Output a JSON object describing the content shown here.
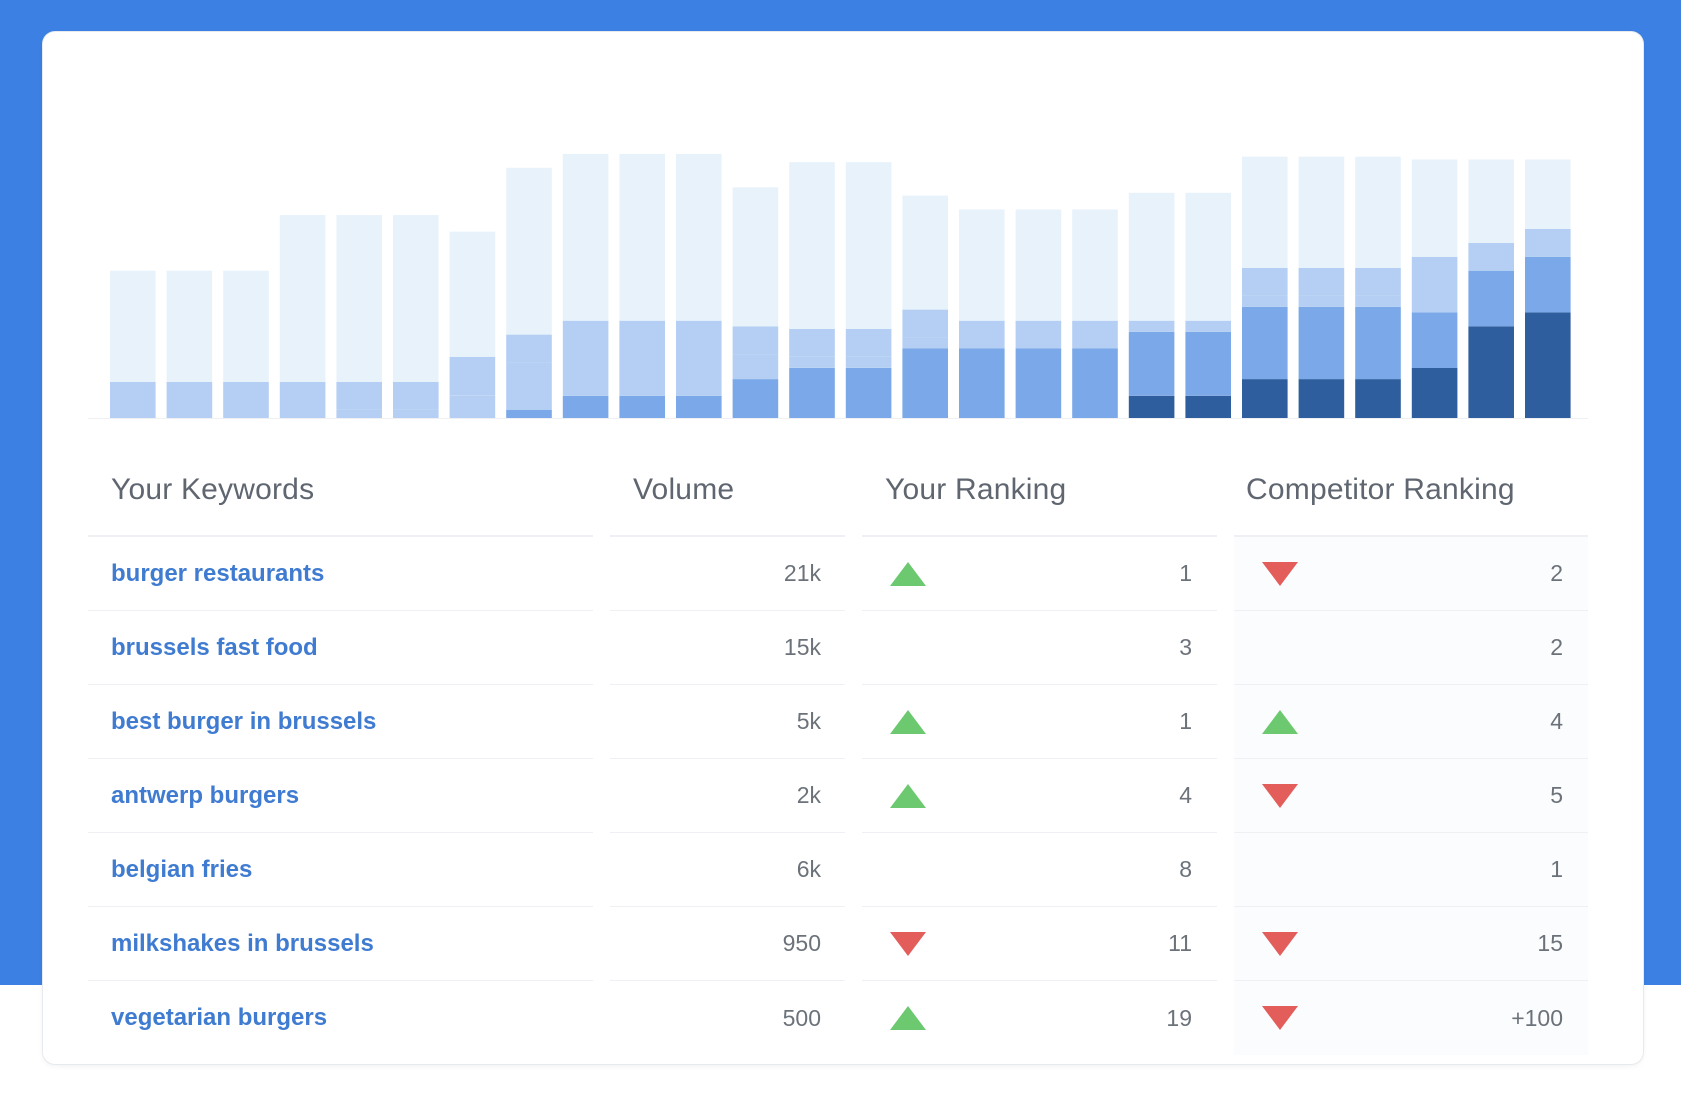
{
  "colors": {
    "background_band": "#3c80e3",
    "link": "#3f7bd0",
    "up": "#6cc96f",
    "down": "#e35d5a",
    "bar_shades": [
      "#e8f2fb",
      "#b4cff3",
      "#7aa8e8",
      "#4287e0",
      "#2e5e9d"
    ]
  },
  "chart_data": {
    "type": "bar",
    "stacked": true,
    "grid": false,
    "legend": "none",
    "ylim": [
      0,
      100
    ],
    "series": [
      {
        "values": [
          0,
          0,
          0,
          0,
          0,
          0,
          0,
          0,
          0,
          0,
          0,
          0,
          0,
          0,
          0,
          0,
          0,
          0,
          8,
          8,
          14,
          14,
          14,
          18,
          33,
          38
        ]
      },
      {
        "values": [
          0,
          0,
          0,
          0,
          0,
          0,
          0,
          0,
          0,
          0,
          0,
          0,
          0,
          0,
          0,
          0,
          0,
          0,
          0,
          0,
          0,
          0,
          0,
          0,
          0,
          0
        ]
      },
      {
        "values": [
          0,
          0,
          0,
          0,
          0,
          0,
          0,
          3,
          8,
          8,
          8,
          14,
          18,
          18,
          25,
          25,
          25,
          25,
          23,
          23,
          26,
          26,
          26,
          20,
          20,
          20
        ]
      },
      {
        "values": [
          0,
          0,
          0,
          0,
          3,
          3,
          8,
          17,
          17,
          17,
          17,
          9,
          4,
          4,
          4,
          10,
          10,
          10,
          4,
          4,
          4,
          4,
          4,
          5,
          0,
          0
        ]
      },
      {
        "values": [
          13,
          13,
          13,
          13,
          10,
          10,
          14,
          10,
          10,
          10,
          10,
          10,
          10,
          10,
          10,
          0,
          0,
          0,
          0,
          0,
          10,
          10,
          10,
          15,
          10,
          10
        ]
      },
      {
        "values": [
          40,
          40,
          40,
          60,
          60,
          60,
          45,
          60,
          60,
          60,
          60,
          50,
          60,
          60,
          41,
          40,
          40,
          40,
          46,
          46,
          40,
          40,
          40,
          35,
          30,
          25
        ]
      }
    ]
  },
  "table": {
    "headers": {
      "keyword": "Your Keywords",
      "volume": "Volume",
      "your_ranking": "Your Ranking",
      "competitor_ranking": "Competitor Ranking"
    },
    "rows": [
      {
        "keyword": "burger restaurants",
        "volume": "21k",
        "your_trend": "up",
        "your_rank": "1",
        "comp_trend": "down",
        "comp_rank": "2"
      },
      {
        "keyword": "brussels fast food",
        "volume": "15k",
        "your_trend": "none",
        "your_rank": "3",
        "comp_trend": "none",
        "comp_rank": "2"
      },
      {
        "keyword": "best burger in brussels",
        "volume": "5k",
        "your_trend": "up",
        "your_rank": "1",
        "comp_trend": "up",
        "comp_rank": "4"
      },
      {
        "keyword": "antwerp burgers",
        "volume": "2k",
        "your_trend": "up",
        "your_rank": "4",
        "comp_trend": "down",
        "comp_rank": "5"
      },
      {
        "keyword": "belgian fries",
        "volume": "6k",
        "your_trend": "none",
        "your_rank": "8",
        "comp_trend": "none",
        "comp_rank": "1"
      },
      {
        "keyword": "milkshakes in brussels",
        "volume": "950",
        "your_trend": "down",
        "your_rank": "11",
        "comp_trend": "down",
        "comp_rank": "15"
      },
      {
        "keyword": "vegetarian burgers",
        "volume": "500",
        "your_trend": "up",
        "your_rank": "19",
        "comp_trend": "down",
        "comp_rank": "+100"
      }
    ]
  }
}
